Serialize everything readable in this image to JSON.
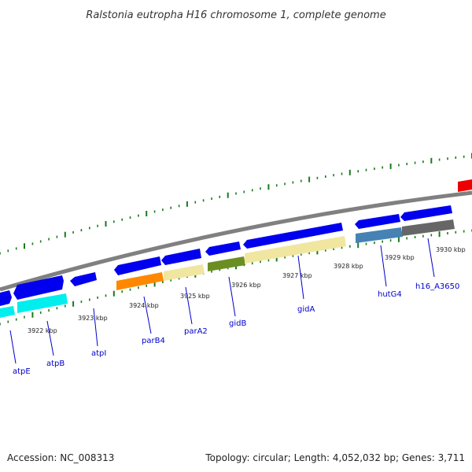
{
  "title": "Ralstonia eutropha H16 chromosome 1, complete genome",
  "footer": {
    "accession": "Accession: NC_008313",
    "summary": "Topology: circular; Length: 4,052,032 bp; Genes: 3,711"
  },
  "ticks": [
    "3922 kbp",
    "3923 kbp",
    "3924 kbp",
    "3925 kbp",
    "3926 kbp",
    "3927 kbp",
    "3928 kbp",
    "3929 kbp",
    "3930 kbp"
  ],
  "genes": [
    "atpE",
    "atpB",
    "atpI",
    "parB4",
    "parA2",
    "gidB",
    "gidA",
    "hutG4",
    "h16_A3650"
  ],
  "colors": {
    "backbone": "#808080",
    "cds_forward": "#0000ee",
    "cds_reverse_red": "#ee0000",
    "tick_green": "#1a7a1a",
    "label_blue": "#0000cc",
    "cog_cyan": "#00eeee",
    "cog_orange": "#ff8800",
    "cog_yellow": "#f0e6a0",
    "cog_olive": "#6b8e23",
    "cog_steelblue": "#4682b4",
    "cog_gray": "#666666"
  }
}
